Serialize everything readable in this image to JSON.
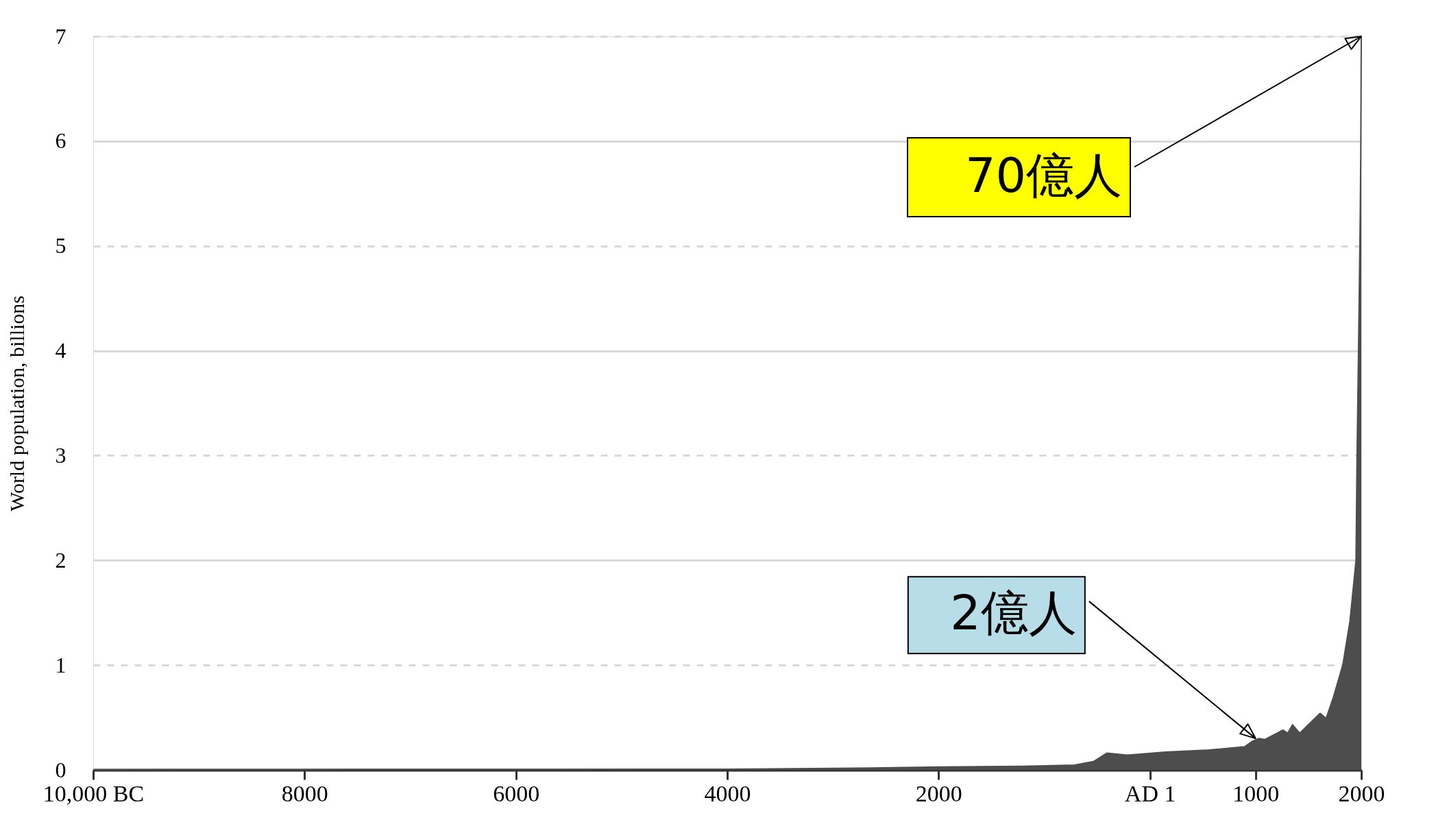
{
  "chart_data": {
    "type": "area",
    "ylabel": "World population, billions",
    "x": [
      -10000,
      -8000,
      -6000,
      -4000,
      -3000,
      -2000,
      -1213,
      -714,
      -533,
      -408,
      -215,
      147,
      556,
      896,
      964,
      1032,
      1088,
      1259,
      1304,
      1349,
      1417,
      1610,
      1667,
      1735,
      1825,
      1893,
      1950,
      1960,
      1975,
      1990,
      1995,
      2000
    ],
    "series": [
      {
        "color": "#4d4d4d",
        "values": [
          0.002,
          0.004,
          0.005,
          0.007,
          0.014,
          0.027,
          0.034,
          0.046,
          0.08,
          0.16,
          0.14,
          0.17,
          0.19,
          0.22,
          0.27,
          0.3,
          0.29,
          0.38,
          0.35,
          0.43,
          0.35,
          0.54,
          0.49,
          0.69,
          1.0,
          1.42,
          2.0,
          3.0,
          4.1,
          5.3,
          5.9,
          7.0
        ]
      }
    ],
    "xlim": [
      -10000,
      2000
    ],
    "xticks": [
      {
        "value": -10000,
        "label": "10,000 BC"
      },
      {
        "value": -8000,
        "label": "8000"
      },
      {
        "value": -6000,
        "label": "6000"
      },
      {
        "value": -4000,
        "label": "4000"
      },
      {
        "value": -2000,
        "label": "2000"
      },
      {
        "value": 0,
        "label": "AD 1"
      },
      1000,
      2000
    ],
    "ylim": [
      0,
      7
    ],
    "yticks": [
      0,
      1,
      2,
      3,
      4,
      5,
      6,
      7
    ],
    "grid": "y",
    "annotations": [
      {
        "text": "70億人",
        "x": 2000,
        "y": 7.0
      },
      {
        "text": "2億人",
        "x": 1000,
        "y": 0.3
      }
    ]
  }
}
